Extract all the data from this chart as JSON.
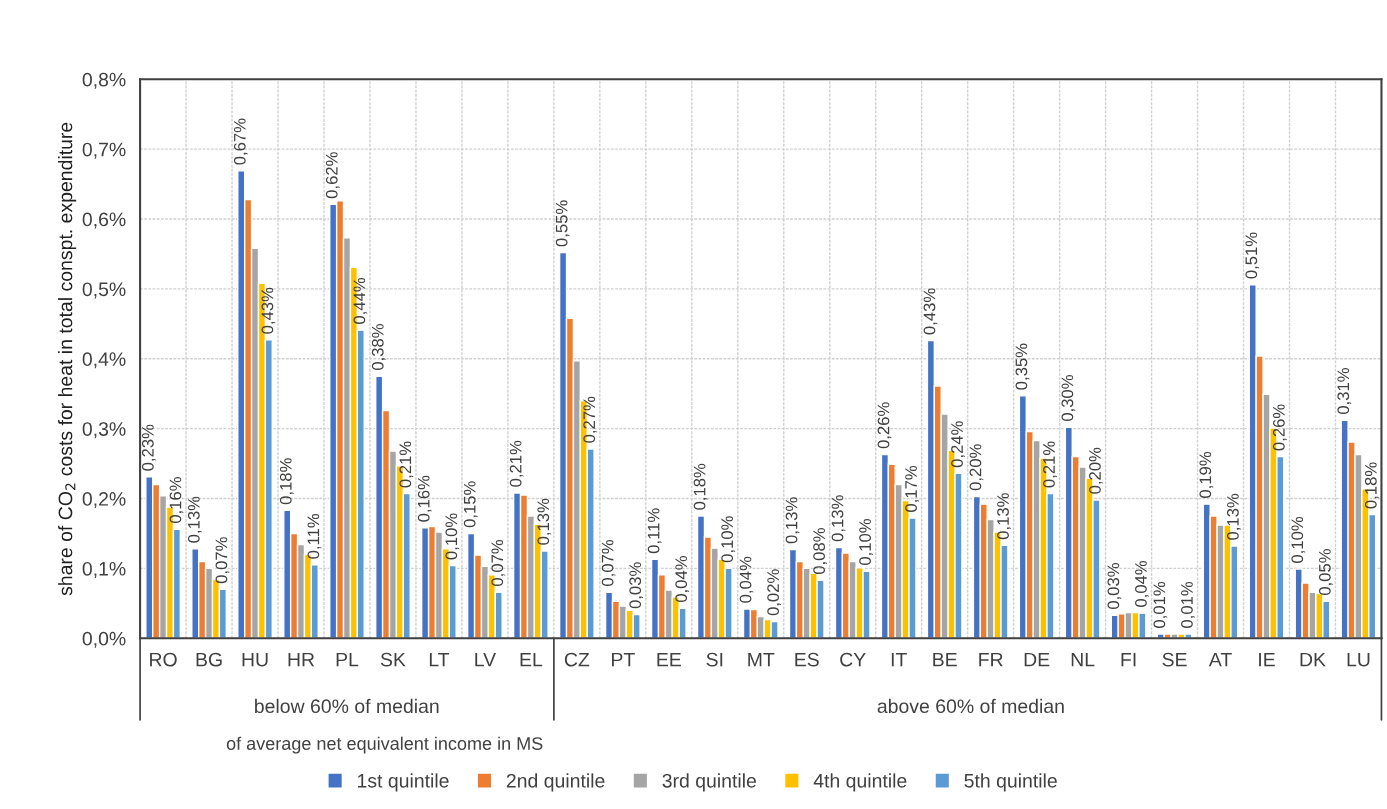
{
  "chart_data": {
    "type": "bar",
    "ylabel": "share of CO$_{2}$ costs for heat in total conspt. expenditure",
    "categories": [
      "RO",
      "BG",
      "HU",
      "HR",
      "PL",
      "SK",
      "LT",
      "LV",
      "EL",
      "CZ",
      "PT",
      "EE",
      "SI",
      "MT",
      "ES",
      "CY",
      "IT",
      "BE",
      "FR",
      "DE",
      "NL",
      "FI",
      "SE",
      "AT",
      "IE",
      "DK",
      "LU"
    ],
    "series": [
      {
        "name": "1st quintile",
        "color": "#4472c4",
        "values": [
          0.231,
          0.128,
          0.669,
          0.183,
          0.621,
          0.375,
          0.158,
          0.15,
          0.208,
          0.552,
          0.066,
          0.113,
          0.175,
          0.042,
          0.127,
          0.13,
          0.263,
          0.426,
          0.203,
          0.347,
          0.302,
          0.033,
          0.006,
          0.192,
          0.506,
          0.099,
          0.312
        ],
        "value_labels": [
          "0,23%",
          "0,13%",
          "0,67%",
          "0,18%",
          "0,62%",
          "0,38%",
          "0,16%",
          "0,15%",
          "0,21%",
          "0,55%",
          "0,07%",
          "0,11%",
          "0,18%",
          "0,04%",
          "0,13%",
          "0,13%",
          "0,26%",
          "0,43%",
          "0,20%",
          "0,35%",
          "0,30%",
          "0,03%",
          "0,01%",
          "0,19%",
          "0,51%",
          "0,10%",
          "0,31%"
        ]
      },
      {
        "name": "2nd quintile",
        "color": "#ed7d31",
        "values": [
          0.22,
          0.11,
          0.628,
          0.15,
          0.626,
          0.326,
          0.16,
          0.119,
          0.205,
          0.458,
          0.053,
          0.091,
          0.145,
          0.041,
          0.11,
          0.122,
          0.249,
          0.361,
          0.192,
          0.296,
          0.26,
          0.035,
          0.006,
          0.175,
          0.404,
          0.079,
          0.281
        ]
      },
      {
        "name": "3rd quintile",
        "color": "#a5a5a5",
        "values": [
          0.204,
          0.1,
          0.558,
          0.134,
          0.573,
          0.268,
          0.152,
          0.103,
          0.175,
          0.397,
          0.046,
          0.069,
          0.129,
          0.031,
          0.1,
          0.11,
          0.22,
          0.321,
          0.17,
          0.283,
          0.245,
          0.037,
          0.006,
          0.162,
          0.349,
          0.066,
          0.263
        ]
      },
      {
        "name": "4th quintile",
        "color": "#ffc000",
        "values": [
          0.188,
          0.084,
          0.508,
          0.12,
          0.531,
          0.247,
          0.128,
          0.091,
          0.163,
          0.34,
          0.04,
          0.059,
          0.113,
          0.027,
          0.093,
          0.101,
          0.197,
          0.269,
          0.152,
          0.258,
          0.229,
          0.037,
          0.006,
          0.162,
          0.301,
          0.064,
          0.214
        ]
      },
      {
        "name": "5th quintile",
        "color": "#5b9bd5",
        "values": [
          0.156,
          0.07,
          0.427,
          0.105,
          0.441,
          0.207,
          0.104,
          0.066,
          0.125,
          0.271,
          0.034,
          0.043,
          0.1,
          0.024,
          0.083,
          0.096,
          0.172,
          0.236,
          0.133,
          0.207,
          0.198,
          0.036,
          0.006,
          0.132,
          0.26,
          0.053,
          0.177
        ],
        "value_labels": [
          "0,16%",
          "0,07%",
          "0,43%",
          "0,11%",
          "0,44%",
          "0,21%",
          "0,10%",
          "0,07%",
          "0,13%",
          "0,27%",
          "0,03%",
          "0,04%",
          "0,10%",
          "0,02%",
          "0,08%",
          "0,10%",
          "0,17%",
          "0,24%",
          "0,13%",
          "0,21%",
          "0,20%",
          "0,04%",
          "0,01%",
          "0,13%",
          "0,26%",
          "0,05%",
          "0,18%"
        ]
      }
    ],
    "ylim": [
      0,
      0.8
    ],
    "yticks": [
      {
        "value": 0,
        "label": "0,0%"
      },
      {
        "value": 0.1,
        "label": "0,1%"
      },
      {
        "value": 0.2,
        "label": "0,2%"
      },
      {
        "value": 0.3,
        "label": "0,3%"
      },
      {
        "value": 0.4,
        "label": "0,4%"
      },
      {
        "value": 0.5,
        "label": "0,5%"
      },
      {
        "value": 0.6,
        "label": "0,6%"
      },
      {
        "value": 0.7,
        "label": "0,7%"
      },
      {
        "value": 0.8,
        "label": "0,8%"
      }
    ],
    "grid": true,
    "legend": "bottom",
    "annotations": [
      "below 60% of median",
      "above 60% of median",
      "of average net equivalent income in MS"
    ]
  }
}
